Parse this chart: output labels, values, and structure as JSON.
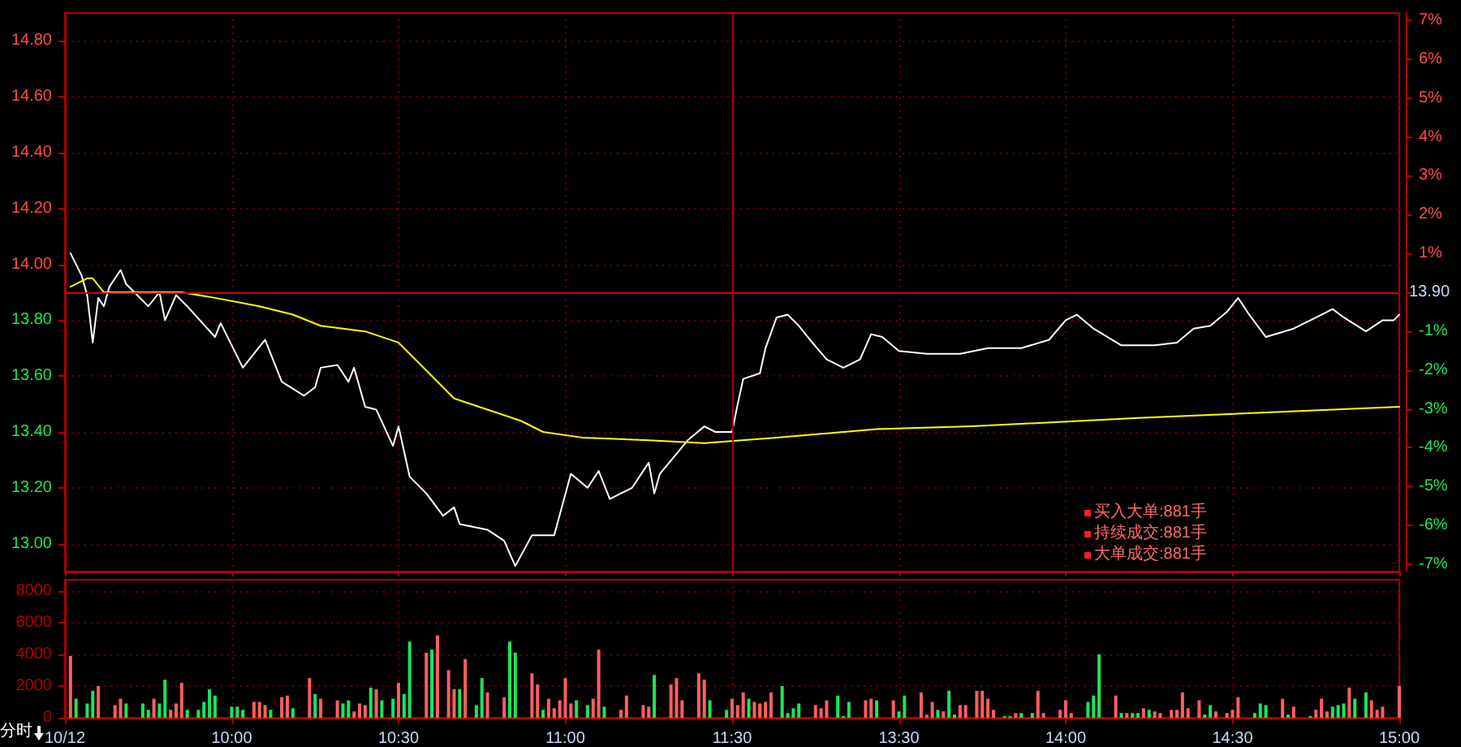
{
  "chart_data": [
    {
      "type": "line",
      "tick_labels": "y",
      "categories": [
        "10/12",
        null,
        null,
        null,
        null,
        null,
        null,
        null,
        null,
        null,
        null,
        null,
        null,
        null,
        null,
        null,
        null,
        null,
        null,
        null,
        null,
        null,
        null,
        null,
        null,
        null,
        null,
        null,
        null,
        null,
        "10:00",
        null,
        null,
        null,
        null,
        null,
        null,
        null,
        null,
        null,
        null,
        null,
        null,
        null,
        null,
        null,
        null,
        null,
        null,
        null,
        null,
        null,
        null,
        null,
        null,
        null,
        null,
        null,
        null,
        null,
        "10:30",
        null,
        null,
        null,
        null,
        null,
        null,
        null,
        null,
        null,
        null,
        null,
        null,
        null,
        null,
        null,
        null,
        null,
        null,
        null,
        null,
        null,
        null,
        null,
        null,
        null,
        null,
        null,
        null,
        null,
        "11:00",
        null,
        null,
        null,
        null,
        null,
        null,
        null,
        null,
        null,
        null,
        null,
        null,
        null,
        null,
        null,
        null,
        null,
        null,
        null,
        null,
        null,
        null,
        null,
        null,
        null,
        null,
        null,
        null,
        null,
        "11:30",
        null,
        null,
        null,
        null,
        null,
        null,
        null,
        null,
        null,
        null,
        null,
        null,
        null,
        null,
        null,
        null,
        null,
        null,
        null,
        null,
        null,
        null,
        null,
        null,
        null,
        null,
        null,
        null,
        null,
        "13:30",
        null,
        null,
        null,
        null,
        null,
        null,
        null,
        null,
        null,
        null,
        null,
        null,
        null,
        null,
        null,
        null,
        null,
        null,
        null,
        null,
        null,
        null,
        null,
        null,
        null,
        null,
        null,
        null,
        null,
        "14:00",
        null,
        null,
        null,
        null,
        null,
        null,
        null,
        null,
        null,
        null,
        null,
        null,
        null,
        null,
        null,
        null,
        null,
        null,
        null,
        null,
        null,
        null,
        null,
        null,
        null,
        null,
        null,
        null,
        null,
        "14:30",
        null,
        null,
        null,
        null,
        null,
        null,
        null,
        null,
        null,
        null,
        null,
        null,
        null,
        null,
        null,
        null,
        null,
        null,
        null,
        null,
        null,
        null,
        null,
        null,
        null,
        null,
        null,
        null,
        null,
        "15:00"
      ],
      "ylim": [
        12.9,
        14.9
      ],
      "yticks": [
        {
          "value": 13.0,
          "label": "13.00"
        },
        {
          "value": 13.2,
          "label": "13.20"
        },
        {
          "value": 13.4,
          "label": "13.40"
        },
        {
          "value": 13.6,
          "label": "13.60"
        },
        {
          "value": 13.8,
          "label": "13.80"
        },
        {
          "value": 14.0,
          "label": "14.00"
        },
        {
          "value": 14.2,
          "label": "14.20"
        },
        {
          "value": 14.4,
          "label": "14.40"
        },
        {
          "value": 14.6,
          "label": "14.60"
        },
        {
          "value": 14.8,
          "label": "14.80"
        }
      ],
      "y2lim": [
        -7.19,
        7.19
      ],
      "y2ticks": [
        {
          "value": -7,
          "label": "-7%"
        },
        {
          "value": -6,
          "label": "-6%"
        },
        {
          "value": -5,
          "label": "-5%"
        },
        {
          "value": -4,
          "label": "-4%"
        },
        {
          "value": -3,
          "label": "-3%"
        },
        {
          "value": -2,
          "label": "-2%"
        },
        {
          "value": -1,
          "label": "-1%"
        },
        {
          "value": 0,
          "label": null
        },
        {
          "value": 1,
          "label": "1%"
        },
        {
          "value": 2,
          "label": "2%"
        },
        {
          "value": 3,
          "label": "3%"
        },
        {
          "value": 4,
          "label": "4%"
        },
        {
          "value": 5,
          "label": "5%"
        },
        {
          "value": 6,
          "label": "6%"
        },
        {
          "value": 7,
          "label": "7%"
        }
      ],
      "grid": true,
      "marker": "none",
      "line_style": "solid",
      "ref_lines": [
        {
          "axis": "y",
          "value": 13.9,
          "label": "13.90",
          "color": "#d00000"
        },
        {
          "axis": "x",
          "value": "11:30",
          "color": "#b00000"
        }
      ],
      "annotations": [
        "买入大单:881手",
        "持续成交:881手",
        "大单成交:881手"
      ],
      "series": [
        {
          "color": "#ffffff",
          "values": [
            null,
            14.04,
            null,
            13.96,
            13.89,
            13.72,
            13.88,
            13.85,
            13.92,
            null,
            13.98,
            13.93,
            null,
            13.89,
            null,
            13.85,
            null,
            13.9,
            13.8,
            null,
            13.89,
            null,
            13.85,
            null,
            null,
            null,
            null,
            13.74,
            13.79,
            null,
            null,
            null,
            13.63,
            null,
            null,
            null,
            13.73,
            null,
            null,
            13.58,
            null,
            null,
            null,
            13.53,
            null,
            13.56,
            13.63,
            null,
            null,
            13.64,
            null,
            13.58,
            13.63,
            null,
            13.49,
            null,
            13.48,
            null,
            null,
            13.35,
            13.42,
            null,
            13.24,
            null,
            null,
            13.18,
            null,
            null,
            13.1,
            null,
            13.13,
            13.07,
            null,
            null,
            null,
            null,
            13.05,
            null,
            null,
            13.01,
            null,
            12.92,
            null,
            null,
            13.03,
            null,
            null,
            null,
            13.03,
            null,
            null,
            13.25,
            null,
            null,
            13.2,
            null,
            13.26,
            null,
            13.16,
            null,
            null,
            null,
            13.2,
            null,
            null,
            13.29,
            13.18,
            13.25,
            null,
            null,
            null,
            null,
            13.37,
            null,
            null,
            13.42,
            null,
            13.4,
            null,
            13.4,
            13.4,
            13.5,
            13.59,
            null,
            null,
            13.61,
            13.7,
            null,
            13.81,
            null,
            13.82,
            null,
            13.78,
            null,
            13.73,
            null,
            null,
            13.66,
            null,
            null,
            13.63,
            null,
            null,
            13.66,
            null,
            13.75,
            null,
            13.74,
            null,
            null,
            13.69,
            null,
            null,
            null,
            null,
            13.68,
            null,
            null,
            null,
            null,
            null,
            13.68,
            null,
            null,
            null,
            null,
            13.7,
            null,
            null,
            null,
            null,
            null,
            13.7,
            null,
            null,
            null,
            null,
            13.73,
            null,
            null,
            13.8,
            null,
            13.82,
            null,
            null,
            13.77,
            null,
            null,
            null,
            null,
            13.71,
            null,
            null,
            null,
            null,
            null,
            13.71,
            null,
            null,
            null,
            13.72,
            null,
            null,
            13.77,
            null,
            null,
            13.78,
            null,
            null,
            13.83,
            null,
            13.88,
            null,
            13.82,
            null,
            null,
            13.74,
            null,
            null,
            null,
            null,
            13.77,
            null,
            null,
            null,
            null,
            13.82,
            null,
            13.84,
            null,
            13.81,
            null,
            null,
            null,
            13.76,
            null,
            null,
            13.8,
            null,
            13.8,
            13.82
          ]
        },
        {
          "color": "#ffff00",
          "values": [
            null,
            13.92,
            null,
            null,
            13.95,
            13.95,
            null,
            13.9,
            null,
            null,
            null,
            null,
            null,
            13.9,
            null,
            null,
            null,
            null,
            13.9,
            null,
            null,
            13.9,
            null,
            null,
            null,
            null,
            null,
            13.88,
            null,
            null,
            null,
            null,
            null,
            null,
            null,
            13.85,
            null,
            null,
            null,
            null,
            null,
            13.82,
            null,
            null,
            null,
            null,
            13.78,
            null,
            null,
            null,
            null,
            null,
            null,
            null,
            13.76,
            null,
            null,
            null,
            null,
            null,
            13.72,
            null,
            null,
            null,
            null,
            13.62,
            null,
            null,
            null,
            null,
            13.52,
            null,
            null,
            null,
            null,
            null,
            13.48,
            null,
            null,
            null,
            null,
            null,
            13.44,
            null,
            null,
            null,
            13.4,
            null,
            null,
            null,
            null,
            null,
            null,
            13.38,
            null,
            null,
            null,
            null,
            null,
            null,
            null,
            null,
            null,
            null,
            null,
            13.37,
            null,
            null,
            null,
            null,
            null,
            null,
            null,
            null,
            null,
            13.36,
            null,
            null,
            null,
            null,
            null,
            null,
            null,
            null,
            null,
            null,
            null,
            null,
            13.38,
            null,
            null,
            null,
            null,
            null,
            null,
            null,
            null,
            null,
            null,
            null,
            null,
            null,
            null,
            null,
            null,
            null,
            13.41,
            null,
            null,
            null,
            null,
            null,
            null,
            null,
            null,
            null,
            null,
            null,
            null,
            null,
            null,
            null,
            null,
            13.42,
            null,
            null,
            null,
            null,
            null,
            null,
            null,
            null,
            null,
            null,
            null,
            null,
            null,
            null,
            null,
            null,
            null,
            null,
            null,
            null,
            null,
            null,
            null,
            null,
            null,
            null,
            null,
            null,
            null,
            13.45,
            null,
            null,
            null,
            null,
            null,
            null,
            null,
            null,
            null,
            null,
            null,
            null,
            null,
            null,
            null,
            null,
            null,
            null,
            null,
            null,
            null,
            null,
            13.47,
            null,
            null,
            null,
            null,
            null,
            null,
            null,
            null,
            null,
            null,
            null,
            null,
            null,
            null,
            null,
            null,
            null,
            null,
            null,
            null,
            null,
            null,
            null,
            13.49
          ]
        }
      ]
    },
    {
      "type": "bar",
      "categories": [
        "10/12",
        null,
        null,
        null,
        null,
        null,
        null,
        null,
        null,
        null,
        null,
        null,
        null,
        null,
        null,
        null,
        null,
        null,
        null,
        null,
        null,
        null,
        null,
        null,
        null,
        null,
        null,
        null,
        null,
        null,
        "10:00",
        null,
        null,
        null,
        null,
        null,
        null,
        null,
        null,
        null,
        null,
        null,
        null,
        null,
        null,
        null,
        null,
        null,
        null,
        null,
        null,
        null,
        null,
        null,
        null,
        null,
        null,
        null,
        null,
        null,
        "10:30",
        null,
        null,
        null,
        null,
        null,
        null,
        null,
        null,
        null,
        null,
        null,
        null,
        null,
        null,
        null,
        null,
        null,
        null,
        null,
        null,
        null,
        null,
        null,
        null,
        null,
        null,
        null,
        null,
        null,
        "11:00",
        null,
        null,
        null,
        null,
        null,
        null,
        null,
        null,
        null,
        null,
        null,
        null,
        null,
        null,
        null,
        null,
        null,
        null,
        null,
        null,
        null,
        null,
        null,
        null,
        null,
        null,
        null,
        null,
        null,
        "11:30",
        null,
        null,
        null,
        null,
        null,
        null,
        null,
        null,
        null,
        null,
        null,
        null,
        null,
        null,
        null,
        null,
        null,
        null,
        null,
        null,
        null,
        null,
        null,
        null,
        null,
        null,
        null,
        null,
        null,
        "13:30",
        null,
        null,
        null,
        null,
        null,
        null,
        null,
        null,
        null,
        null,
        null,
        null,
        null,
        null,
        null,
        null,
        null,
        null,
        null,
        null,
        null,
        null,
        null,
        null,
        null,
        null,
        null,
        null,
        null,
        "14:00",
        null,
        null,
        null,
        null,
        null,
        null,
        null,
        null,
        null,
        null,
        null,
        null,
        null,
        null,
        null,
        null,
        null,
        null,
        null,
        null,
        null,
        null,
        null,
        null,
        null,
        null,
        null,
        null,
        null,
        "14:30",
        null,
        null,
        null,
        null,
        null,
        null,
        null,
        null,
        null,
        null,
        null,
        null,
        null,
        null,
        null,
        null,
        null,
        null,
        null,
        null,
        null,
        null,
        null,
        null,
        null,
        null,
        null,
        null,
        null,
        "15:00"
      ],
      "ylim": [
        0,
        8700
      ],
      "yticks": [
        0,
        2000,
        4000,
        6000,
        8000
      ],
      "grid": true,
      "annotations": [
        "分时"
      ],
      "values": [
        null,
        3900,
        1200,
        null,
        900,
        1700,
        2000,
        null,
        null,
        800,
        1200,
        900,
        null,
        null,
        900,
        500,
        1200,
        900,
        2400,
        500,
        900,
        2200,
        500,
        null,
        500,
        1000,
        1800,
        1400,
        null,
        null,
        700,
        700,
        500,
        null,
        1000,
        1000,
        800,
        500,
        null,
        1300,
        1400,
        600,
        null,
        null,
        2500,
        1500,
        1200,
        null,
        null,
        1100,
        900,
        1100,
        400,
        900,
        800,
        1900,
        1800,
        1100,
        null,
        1200,
        2200,
        1500,
        4800,
        null,
        null,
        4100,
        4300,
        5200,
        null,
        3000,
        1800,
        1800,
        3700,
        null,
        800,
        2500,
        1600,
        null,
        null,
        1300,
        4800,
        4100,
        null,
        null,
        2800,
        2100,
        500,
        1200,
        600,
        1100,
        2500,
        900,
        1100,
        null,
        800,
        1200,
        4300,
        700,
        null,
        null,
        500,
        1400,
        null,
        null,
        800,
        700,
        2700,
        null,
        null,
        2100,
        2500,
        1100,
        null,
        null,
        2800,
        2400,
        1100,
        null,
        null,
        500,
        1200,
        800,
        1600,
        1200,
        1000,
        900,
        1000,
        1600,
        null,
        2000,
        300,
        600,
        900,
        null,
        null,
        800,
        600,
        1100,
        null,
        1400,
        100,
        1000,
        null,
        null,
        1100,
        1200,
        1100,
        null,
        null,
        1100,
        400,
        1400,
        null,
        null,
        1600,
        200,
        1000,
        500,
        400,
        1700,
        200,
        800,
        800,
        null,
        1700,
        1700,
        1200,
        500,
        null,
        100,
        100,
        300,
        300,
        null,
        300,
        1700,
        300,
        null,
        null,
        500,
        1100,
        300,
        null,
        null,
        1000,
        1400,
        4000,
        null,
        null,
        1400,
        300,
        300,
        300,
        300,
        600,
        500,
        400,
        300,
        null,
        500,
        500,
        1600,
        600,
        null,
        1100,
        200,
        800,
        400,
        null,
        300,
        500,
        1300,
        null,
        null,
        300,
        900,
        800,
        null,
        null,
        1200,
        200,
        700,
        null,
        null,
        100,
        500,
        1200,
        400,
        700,
        800,
        900,
        1900,
        1200,
        null,
        1600,
        1100,
        500,
        700,
        null,
        null,
        2000
      ],
      "colors": [
        null,
        "#ff5f5f",
        "#19e65a",
        null,
        "#19e65a",
        "#19e65a",
        "#ff5f5f",
        null,
        null,
        "#ff5f5f",
        "#ff5f5f",
        "#19e65a",
        null,
        null,
        "#19e65a",
        "#19e65a",
        "#ff5f5f",
        "#19e65a",
        "#19e65a",
        "#ff5f5f",
        "#ff5f5f",
        "#ff5f5f",
        "#19e65a",
        null,
        "#19e65a",
        "#19e65a",
        "#19e65a",
        "#19e65a",
        null,
        null,
        "#19e65a",
        "#19e65a",
        "#19e65a",
        null,
        "#ff5f5f",
        "#ff5f5f",
        "#ff5f5f",
        "#19e65a",
        null,
        "#ff5f5f",
        "#ff5f5f",
        "#19e65a",
        null,
        null,
        "#ff5f5f",
        "#19e65a",
        "#ff5f5f",
        null,
        null,
        "#ff5f5f",
        "#19e65a",
        "#19e65a",
        "#ff5f5f",
        "#ff5f5f",
        "#ff5f5f",
        "#19e65a",
        "#ff5f5f",
        "#19e65a",
        null,
        "#19e65a",
        "#ff5f5f",
        "#19e65a",
        "#19e65a",
        null,
        null,
        "#ff5f5f",
        "#19e65a",
        "#ff5f5f",
        null,
        "#ff5f5f",
        "#ff5f5f",
        "#19e65a",
        "#ff5f5f",
        null,
        "#19e65a",
        "#19e65a",
        "#ff5f5f",
        null,
        null,
        "#ff5f5f",
        "#19e65a",
        "#19e65a",
        null,
        null,
        "#ff5f5f",
        "#ff5f5f",
        "#19e65a",
        "#ff5f5f",
        "#ff5f5f",
        "#ff5f5f",
        "#ff5f5f",
        "#ff5f5f",
        "#19e65a",
        null,
        "#19e65a",
        "#ff5f5f",
        "#ff5f5f",
        "#19e65a",
        null,
        null,
        "#ff5f5f",
        "#ff5f5f",
        null,
        null,
        "#ff5f5f",
        "#ff5f5f",
        "#19e65a",
        null,
        null,
        "#ff5f5f",
        "#ff5f5f",
        "#ff5f5f",
        null,
        null,
        "#ff5f5f",
        "#ff5f5f",
        "#19e65a",
        null,
        null,
        "#19e65a",
        "#ff5f5f",
        "#ff5f5f",
        "#ff5f5f",
        "#19e65a",
        "#ff5f5f",
        "#ff5f5f",
        "#ff5f5f",
        "#ff5f5f",
        null,
        "#19e65a",
        "#19e65a",
        "#19e65a",
        "#19e65a",
        null,
        null,
        "#ff5f5f",
        "#ff5f5f",
        "#ff5f5f",
        null,
        "#19e65a",
        "#19e65a",
        "#19e65a",
        null,
        null,
        "#ff5f5f",
        "#ff5f5f",
        "#19e65a",
        null,
        null,
        "#ff5f5f",
        "#19e65a",
        "#19e65a",
        null,
        null,
        "#ff5f5f",
        "#ff5f5f",
        "#ff5f5f",
        "#19e65a",
        "#ff5f5f",
        "#19e65a",
        "#19e65a",
        "#ff5f5f",
        "#ff5f5f",
        null,
        "#ff5f5f",
        "#ff5f5f",
        "#ff5f5f",
        "#ff5f5f",
        null,
        "#19e65a",
        "#19e65a",
        "#ff5f5f",
        "#19e65a",
        null,
        "#19e65a",
        "#ff5f5f",
        "#ff5f5f",
        null,
        null,
        "#ff5f5f",
        "#ff5f5f",
        "#ff5f5f",
        null,
        null,
        "#19e65a",
        "#19e65a",
        "#19e65a",
        null,
        null,
        "#ff5f5f",
        "#19e65a",
        "#ff5f5f",
        "#19e65a",
        "#19e65a",
        "#ff5f5f",
        "#19e65a",
        "#ff5f5f",
        "#ff5f5f",
        null,
        "#ff5f5f",
        "#ff5f5f",
        "#ff5f5f",
        "#ff5f5f",
        null,
        "#ff5f5f",
        "#19e65a",
        "#19e65a",
        "#ff5f5f",
        null,
        "#ff5f5f",
        "#ff5f5f",
        "#ff5f5f",
        null,
        null,
        "#19e65a",
        "#19e65a",
        "#19e65a",
        null,
        null,
        "#ff5f5f",
        "#19e65a",
        "#ff5f5f",
        null,
        null,
        "#19e65a",
        "#ff5f5f",
        "#ff5f5f",
        "#ff5f5f",
        "#19e65a",
        "#19e65a",
        "#19e65a",
        "#ff5f5f",
        "#19e65a",
        null,
        "#19e65a",
        "#ff5f5f",
        "#ff5f5f",
        "#ff5f5f",
        null,
        null,
        "#ff5f5f"
      ]
    }
  ]
}
